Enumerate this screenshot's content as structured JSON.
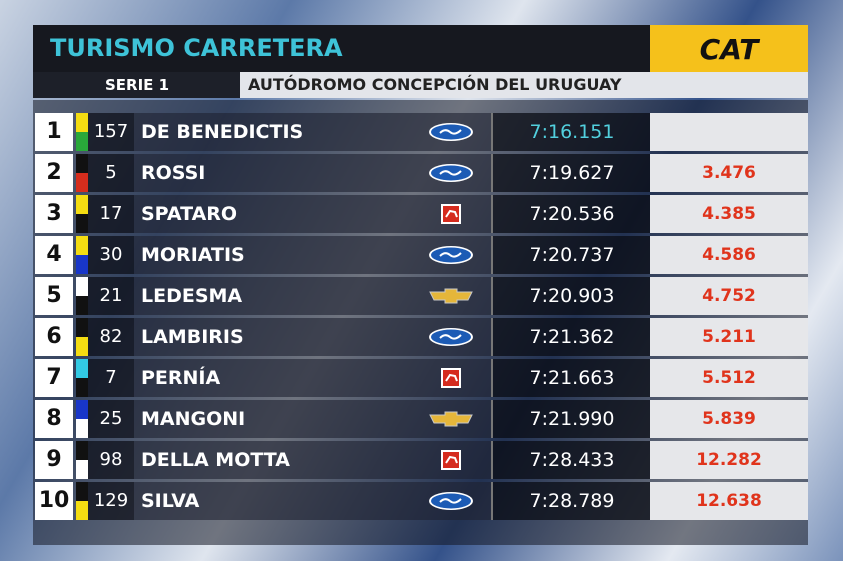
{
  "header": {
    "title": "TURISMO CARRETERA",
    "sponsor": "CAT",
    "series": "SERIE 1",
    "venue": "AUTÓDROMO CONCEPCIÓN DEL URUGUAY"
  },
  "rows": [
    {
      "position": 1,
      "number": 157,
      "driver": "DE BENEDICTIS",
      "time": "7:16.151"
    },
    {
      "position": 2,
      "number": 5,
      "driver": "ROSSI",
      "time": "7:19.627",
      "gap": "3.476"
    },
    {
      "position": 3,
      "number": 17,
      "driver": "SPATARO",
      "time": "7:20.536",
      "gap": "4.385"
    },
    {
      "position": 4,
      "number": 30,
      "driver": "MORIATIS",
      "time": "7:20.737",
      "gap": "4.586"
    },
    {
      "position": 5,
      "number": 21,
      "driver": "LEDESMA",
      "time": "7:20.903",
      "gap": "4.752"
    },
    {
      "position": 6,
      "number": 82,
      "driver": "LAMBIRIS",
      "time": "7:21.362",
      "gap": "5.211"
    },
    {
      "position": 7,
      "number": 7,
      "driver": "PERNÍA",
      "time": "7:21.663",
      "gap": "5.512"
    },
    {
      "position": 8,
      "number": 25,
      "driver": "MANGONI",
      "time": "7:21.990",
      "gap": "5.839"
    },
    {
      "position": 9,
      "number": 98,
      "driver": "DELLA MOTTA",
      "time": "7:28.433",
      "gap": "12.282"
    },
    {
      "position": 10,
      "number": 129,
      "driver": "SILVA",
      "time": "7:28.789",
      "gap": "12.638"
    }
  ]
}
